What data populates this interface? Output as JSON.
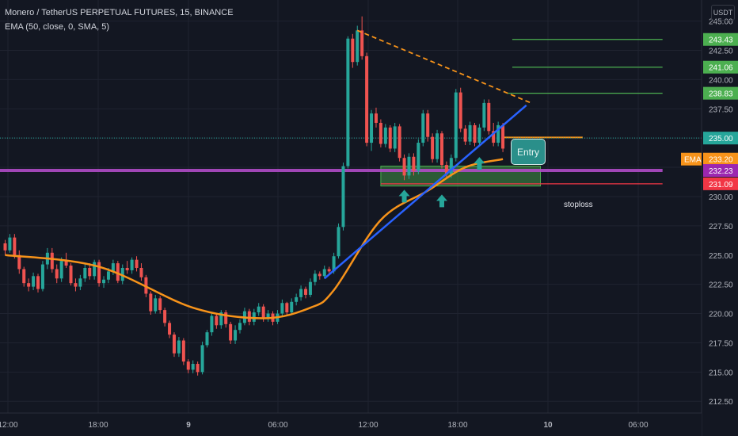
{
  "header": {
    "symbol_line": "Monero / TetherUS PERPETUAL FUTURES, 15, BINANCE",
    "indicator_line": "EMA (50, close, 0, SMA, 5)",
    "currency": "USDT"
  },
  "annotations": {
    "entry": "Entry",
    "stoploss": "stoploss"
  },
  "colors": {
    "background": "#131722",
    "up": "#26a69a",
    "down": "#ef5350",
    "ema": "#f7931a",
    "trendline": "#2962ff",
    "resistance": "#f7931a",
    "support_line": "#b04bc7",
    "target": "#4caf50",
    "stop": "#f23645"
  },
  "chart_data": {
    "type": "candlestick",
    "y_axis": {
      "range": [
        211.5,
        246.8
      ],
      "ticks": [
        212.5,
        215.0,
        217.5,
        220.0,
        222.5,
        225.0,
        227.5,
        230.0,
        232.5,
        235.0,
        237.5,
        240.0,
        242.5,
        245.0
      ]
    },
    "x_axis": {
      "labels": [
        "12:00",
        "18:00",
        "9",
        "06:00",
        "12:00",
        "18:00",
        "10",
        "06:00"
      ]
    },
    "price_tags": [
      {
        "label": "243.43",
        "value": 243.43,
        "color": "#4caf50"
      },
      {
        "label": "241.06",
        "value": 241.06,
        "color": "#4caf50"
      },
      {
        "label": "238.83",
        "value": 238.83,
        "color": "#4caf50"
      },
      {
        "label": "235.00",
        "value": 235.0,
        "color": "#26a69a"
      },
      {
        "label": "233.20",
        "value": 233.2,
        "color": "#f7931a",
        "prefix": "EMA"
      },
      {
        "label": "232.23",
        "value": 232.23,
        "color": "#9c27b0"
      },
      {
        "label": "231.09",
        "value": 231.09,
        "color": "#f23645"
      }
    ],
    "candles": [
      [
        226.0,
        226.3,
        225.0,
        225.4
      ],
      [
        225.4,
        226.8,
        225.2,
        226.5
      ],
      [
        226.5,
        226.8,
        224.7,
        225.0
      ],
      [
        225.0,
        225.4,
        223.4,
        223.8
      ],
      [
        223.8,
        224.0,
        222.3,
        222.6
      ],
      [
        222.6,
        223.0,
        221.9,
        222.3
      ],
      [
        222.3,
        223.5,
        222.0,
        223.2
      ],
      [
        223.2,
        223.4,
        221.8,
        222.1
      ],
      [
        222.1,
        224.5,
        221.9,
        224.2
      ],
      [
        224.2,
        225.6,
        223.8,
        225.2
      ],
      [
        225.2,
        225.6,
        223.5,
        223.8
      ],
      [
        223.8,
        224.2,
        222.6,
        223.0
      ],
      [
        223.0,
        224.8,
        222.7,
        224.5
      ],
      [
        224.5,
        225.2,
        223.9,
        224.1
      ],
      [
        224.1,
        224.3,
        222.4,
        222.6
      ],
      [
        222.6,
        223.0,
        221.9,
        222.3
      ],
      [
        222.3,
        223.3,
        222.0,
        223.0
      ],
      [
        223.0,
        224.2,
        222.7,
        223.9
      ],
      [
        223.9,
        224.3,
        222.9,
        223.2
      ],
      [
        223.2,
        224.6,
        222.9,
        224.4
      ],
      [
        224.4,
        224.6,
        222.3,
        222.6
      ],
      [
        222.6,
        223.2,
        222.2,
        222.9
      ],
      [
        222.9,
        223.9,
        222.6,
        223.6
      ],
      [
        223.6,
        224.6,
        223.3,
        224.3
      ],
      [
        224.3,
        224.5,
        222.6,
        222.8
      ],
      [
        222.8,
        224.2,
        222.5,
        223.9
      ],
      [
        223.9,
        224.5,
        223.4,
        223.7
      ],
      [
        223.7,
        224.8,
        223.4,
        224.6
      ],
      [
        224.6,
        224.9,
        223.6,
        223.9
      ],
      [
        223.9,
        224.3,
        222.8,
        223.1
      ],
      [
        223.1,
        223.3,
        221.4,
        221.7
      ],
      [
        221.7,
        221.9,
        219.9,
        220.2
      ],
      [
        220.2,
        221.6,
        220.0,
        221.3
      ],
      [
        221.3,
        221.5,
        220.0,
        220.3
      ],
      [
        220.3,
        220.5,
        218.9,
        219.2
      ],
      [
        219.2,
        219.4,
        217.9,
        218.2
      ],
      [
        218.2,
        218.4,
        216.3,
        216.6
      ],
      [
        216.6,
        218.0,
        216.3,
        217.7
      ],
      [
        217.7,
        217.9,
        215.6,
        215.9
      ],
      [
        215.9,
        216.1,
        214.9,
        215.2
      ],
      [
        215.2,
        216.0,
        214.9,
        215.7
      ],
      [
        215.7,
        215.9,
        214.7,
        215.0
      ],
      [
        215.0,
        217.6,
        214.8,
        217.3
      ],
      [
        217.3,
        218.6,
        217.1,
        218.4
      ],
      [
        218.4,
        220.1,
        218.1,
        219.8
      ],
      [
        219.8,
        220.0,
        218.7,
        219.0
      ],
      [
        219.0,
        220.3,
        218.7,
        220.1
      ],
      [
        220.1,
        220.3,
        218.8,
        219.1
      ],
      [
        219.1,
        219.3,
        217.4,
        217.7
      ],
      [
        217.7,
        219.0,
        217.4,
        218.6
      ],
      [
        218.6,
        219.5,
        218.3,
        219.2
      ],
      [
        219.2,
        220.5,
        219.0,
        220.2
      ],
      [
        220.2,
        220.4,
        219.0,
        219.3
      ],
      [
        219.3,
        220.4,
        219.0,
        220.1
      ],
      [
        220.1,
        220.9,
        219.8,
        220.6
      ],
      [
        220.6,
        220.8,
        219.3,
        219.6
      ],
      [
        219.6,
        220.3,
        219.3,
        220.0
      ],
      [
        220.0,
        220.2,
        219.0,
        219.3
      ],
      [
        219.3,
        220.3,
        219.1,
        220.0
      ],
      [
        220.0,
        221.2,
        219.8,
        220.9
      ],
      [
        220.9,
        221.0,
        219.8,
        220.1
      ],
      [
        220.1,
        221.3,
        219.9,
        221.0
      ],
      [
        221.0,
        221.7,
        220.7,
        221.4
      ],
      [
        221.4,
        222.4,
        221.1,
        222.1
      ],
      [
        222.1,
        222.3,
        221.3,
        221.6
      ],
      [
        221.6,
        223.0,
        221.4,
        222.7
      ],
      [
        222.7,
        223.7,
        222.4,
        223.4
      ],
      [
        223.4,
        223.6,
        222.9,
        223.2
      ],
      [
        223.2,
        224.1,
        223.0,
        223.8
      ],
      [
        223.8,
        224.0,
        223.3,
        223.6
      ],
      [
        223.6,
        225.2,
        223.4,
        224.9
      ],
      [
        224.9,
        227.7,
        224.7,
        227.4
      ],
      [
        227.4,
        232.9,
        227.1,
        232.6
      ],
      [
        232.6,
        243.7,
        232.4,
        243.5
      ],
      [
        243.5,
        243.9,
        241.0,
        241.5
      ],
      [
        241.5,
        244.6,
        241.2,
        244.2
      ],
      [
        244.2,
        245.4,
        241.7,
        242.0
      ],
      [
        242.0,
        242.3,
        234.3,
        234.6
      ],
      [
        234.6,
        237.4,
        233.9,
        237.1
      ],
      [
        237.1,
        237.6,
        235.9,
        236.3
      ],
      [
        236.3,
        236.6,
        234.2,
        234.5
      ],
      [
        234.5,
        236.2,
        234.2,
        235.9
      ],
      [
        235.9,
        236.1,
        233.8,
        234.1
      ],
      [
        234.1,
        236.3,
        233.8,
        236.0
      ],
      [
        236.0,
        236.2,
        233.0,
        233.3
      ],
      [
        233.3,
        233.6,
        231.4,
        231.8
      ],
      [
        231.8,
        233.7,
        231.5,
        233.4
      ],
      [
        233.4,
        233.7,
        231.8,
        232.2
      ],
      [
        232.2,
        234.9,
        231.9,
        234.6
      ],
      [
        234.6,
        237.4,
        234.3,
        237.1
      ],
      [
        237.1,
        237.4,
        234.7,
        235.1
      ],
      [
        235.1,
        235.4,
        232.9,
        233.2
      ],
      [
        233.2,
        235.7,
        232.9,
        235.4
      ],
      [
        235.4,
        235.6,
        232.4,
        232.7
      ],
      [
        232.7,
        233.0,
        231.5,
        231.9
      ],
      [
        231.9,
        233.6,
        231.6,
        233.3
      ],
      [
        233.3,
        239.2,
        233.0,
        238.9
      ],
      [
        238.9,
        239.3,
        235.5,
        235.8
      ],
      [
        235.8,
        236.1,
        234.4,
        234.7
      ],
      [
        234.7,
        236.4,
        234.4,
        236.1
      ],
      [
        236.1,
        236.3,
        234.3,
        234.6
      ],
      [
        234.6,
        236.2,
        234.3,
        235.9
      ],
      [
        235.9,
        238.3,
        235.6,
        238.0
      ],
      [
        238.0,
        238.3,
        235.3,
        235.6
      ],
      [
        235.6,
        236.3,
        234.3,
        234.6
      ],
      [
        234.6,
        236.4,
        234.3,
        236.1
      ],
      [
        236.1,
        236.3,
        233.8,
        234.1
      ]
    ],
    "ema": [
      [
        0,
        225.0
      ],
      [
        20,
        224.0
      ],
      [
        40,
        220.5
      ],
      [
        55,
        219.6
      ],
      [
        65,
        220.5
      ],
      [
        70,
        222.0
      ],
      [
        80,
        228.0
      ],
      [
        90,
        230.5
      ],
      [
        98,
        232.5
      ],
      [
        106,
        233.2
      ]
    ],
    "lines": [
      {
        "name": "resistance",
        "from": [
          75,
          244.2
        ],
        "to": [
          112,
          238.0
        ],
        "dashed": true
      },
      {
        "name": "trendline",
        "from": [
          68,
          223.0
        ],
        "to": [
          111,
          237.8
        ],
        "dashed": false
      },
      {
        "name": "support",
        "from": [
          -10,
          232.23
        ],
        "to": [
          140,
          232.23
        ],
        "dashed": false
      },
      {
        "name": "target1",
        "from": [
          108,
          243.43
        ],
        "to": [
          140,
          243.43
        ],
        "dashed": false
      },
      {
        "name": "target2",
        "from": [
          108,
          241.06
        ],
        "to": [
          140,
          241.06
        ],
        "dashed": false
      },
      {
        "name": "target3",
        "from": [
          107,
          238.83
        ],
        "to": [
          140,
          238.83
        ],
        "dashed": false
      },
      {
        "name": "stop",
        "from": [
          80,
          231.09
        ],
        "to": [
          140,
          231.09
        ],
        "dashed": false
      },
      {
        "name": "entry-line",
        "from": [
          106,
          235.05
        ],
        "to": [
          123,
          235.05
        ],
        "dashed": false
      }
    ],
    "current_price": 235.0,
    "support_zone": {
      "x": [
        80,
        114
      ],
      "y": [
        230.9,
        232.6
      ]
    },
    "arrows": [
      {
        "x": 85,
        "y": 229.9
      },
      {
        "x": 93,
        "y": 229.5
      },
      {
        "x": 101,
        "y": 232.7
      }
    ]
  }
}
